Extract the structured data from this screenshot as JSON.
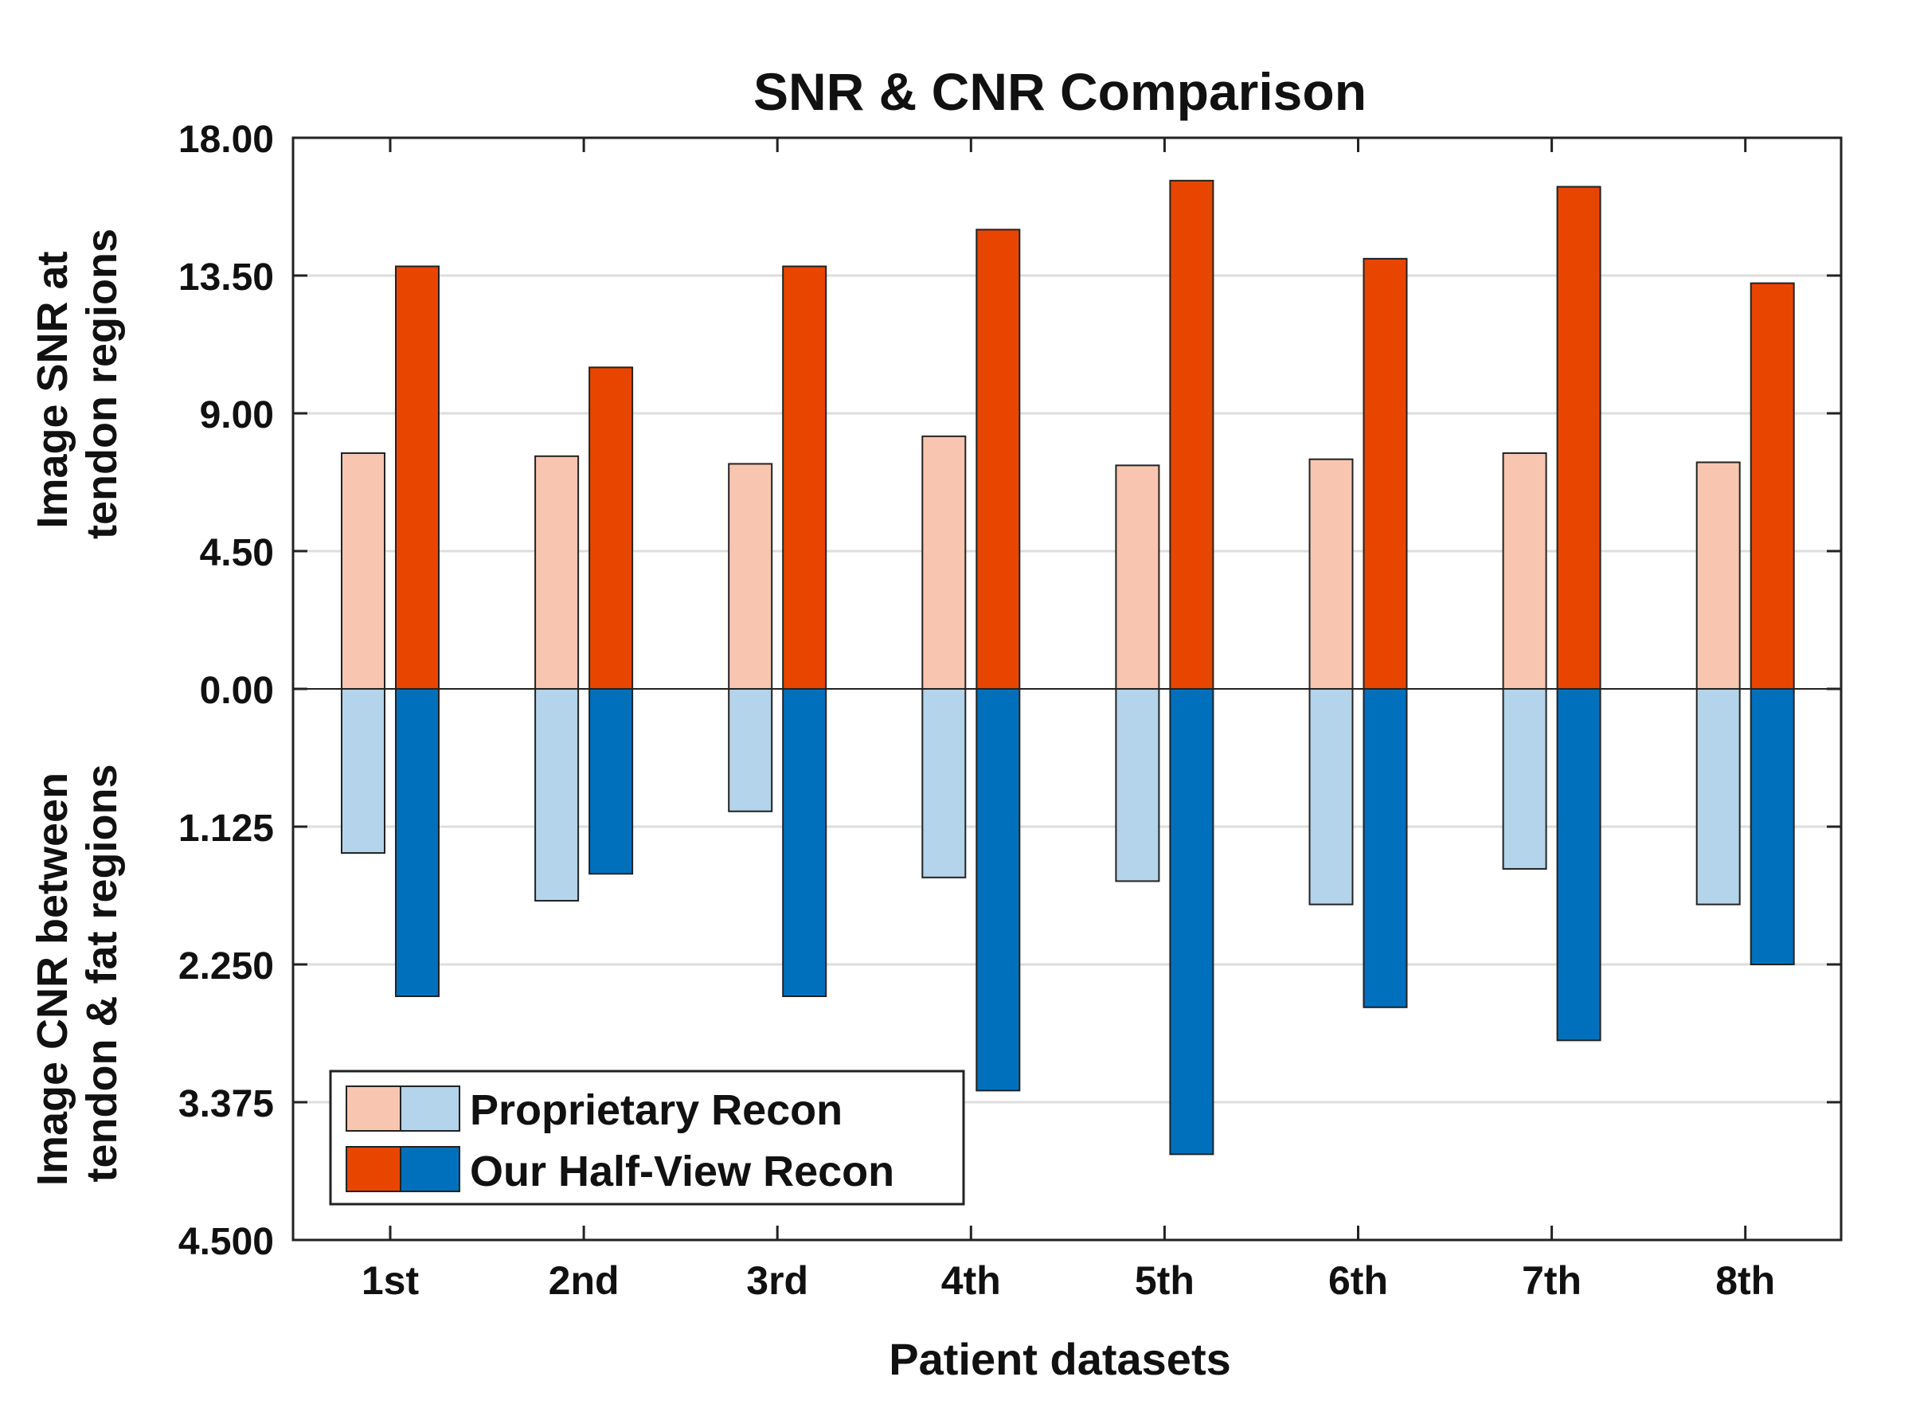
{
  "chart_data": {
    "type": "bar",
    "title": "SNR & CNR Comparison",
    "xlabel": "Patient datasets",
    "ylabel_top": [
      "Image SNR at",
      "tendon regions"
    ],
    "ylabel_bottom": [
      "Image CNR between",
      "tendon & fat regions"
    ],
    "categories": [
      "1st",
      "2nd",
      "3rd",
      "4th",
      "5th",
      "6th",
      "7th",
      "8th"
    ],
    "snr_axis": {
      "range": [
        0,
        18
      ],
      "ticks": [
        "0.00",
        "4.50",
        "9.00",
        "13.50",
        "18.00"
      ]
    },
    "cnr_axis": {
      "range": [
        0,
        4.5
      ],
      "inverted": true,
      "ticks": [
        "1.125",
        "2.250",
        "3.375",
        "4.500"
      ]
    },
    "grid": true,
    "legend_position": "bottom-left",
    "series": [
      {
        "name": "Proprietary Recon",
        "metric": "SNR",
        "color": "#F8C6B0",
        "values": [
          7.7,
          7.6,
          7.35,
          8.25,
          7.3,
          7.5,
          7.7,
          7.4
        ]
      },
      {
        "name": "Our Half-View Recon",
        "metric": "SNR",
        "color": "#E84600",
        "values": [
          13.8,
          10.5,
          13.8,
          15.0,
          16.6,
          14.05,
          16.4,
          13.25
        ]
      },
      {
        "name": "Proprietary Recon",
        "metric": "CNR",
        "color": "#B3D4EA",
        "values": [
          1.34,
          1.73,
          1.0,
          1.54,
          1.57,
          1.76,
          1.47,
          1.76
        ]
      },
      {
        "name": "Our Half-View Recon",
        "metric": "CNR",
        "color": "#0070BD",
        "values": [
          2.51,
          1.51,
          2.51,
          3.28,
          3.8,
          2.6,
          2.87,
          2.25
        ]
      }
    ],
    "legend": [
      {
        "label": "Proprietary Recon",
        "colors": [
          "#F8C6B0",
          "#B3D4EA"
        ]
      },
      {
        "label": "Our Half-View Recon",
        "colors": [
          "#E84600",
          "#0070BD"
        ]
      }
    ]
  }
}
